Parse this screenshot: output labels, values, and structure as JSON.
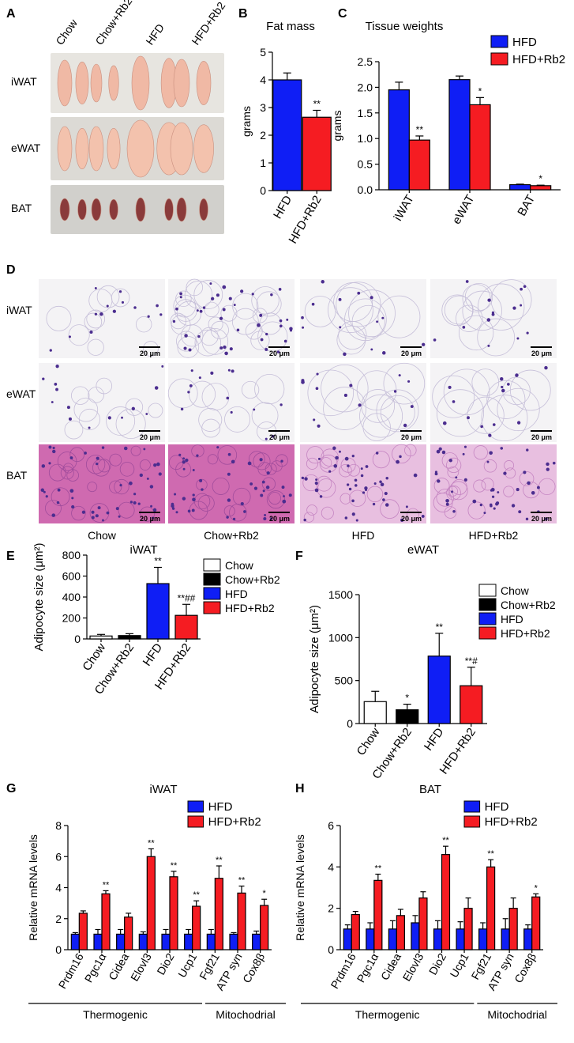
{
  "panel_labels": {
    "A": "A",
    "B": "B",
    "C": "C",
    "D": "D",
    "E": "E",
    "F": "F",
    "G": "G",
    "H": "H"
  },
  "colors": {
    "HFD": "#0f1ef5",
    "HFD+Rb2": "#f51c22",
    "Chow": "#ffffff",
    "Chow+Rb2": "#000000",
    "photo_bg": "#d9d9d4",
    "he_white": "#f4f3f5",
    "he_bat": "#d47fbd",
    "nucleus": "#4b2d8f"
  },
  "panelA": {
    "groups": [
      "Chow",
      "Chow+Rb2",
      "HFD",
      "HFD+Rb2"
    ],
    "rows": [
      "iWAT",
      "eWAT",
      "BAT"
    ]
  },
  "panelD": {
    "rows": [
      "iWAT",
      "eWAT",
      "BAT"
    ],
    "columns": [
      "Chow",
      "Chow+Rb2",
      "HFD",
      "HFD+Rb2"
    ],
    "scale_bar": "20 μm"
  },
  "chart_data": [
    {
      "panel": "B",
      "type": "bar",
      "title": "Fat mass",
      "ylabel": "grams",
      "categories": [
        "HFD",
        "HFD+Rb2"
      ],
      "values": [
        4.0,
        2.65
      ],
      "errors": [
        0.25,
        0.25
      ],
      "colors": [
        "#0f1ef5",
        "#f51c22"
      ],
      "annotations": [
        "",
        "**"
      ],
      "ylim": [
        0,
        5
      ],
      "yticks": [
        "0",
        "1",
        "2",
        "3",
        "4",
        "5"
      ]
    },
    {
      "panel": "C",
      "type": "bar",
      "title": "Tissue weights",
      "ylabel": "grams",
      "categories": [
        "iWAT",
        "eWAT",
        "BAT"
      ],
      "series": [
        {
          "name": "HFD",
          "values": [
            1.95,
            2.15,
            0.1
          ],
          "errors": [
            0.15,
            0.07,
            0.01
          ],
          "annotations": [
            "",
            "",
            ""
          ]
        },
        {
          "name": "HFD+Rb2",
          "values": [
            0.97,
            1.66,
            0.08
          ],
          "errors": [
            0.08,
            0.14,
            0.01
          ],
          "annotations": [
            "**",
            "*",
            "*"
          ]
        }
      ],
      "ylim": [
        0,
        2.5
      ],
      "yticks": [
        "0.0",
        "0.5",
        "1.0",
        "1.5",
        "2.0",
        "2.5"
      ],
      "legend": "top-right"
    },
    {
      "panel": "E",
      "type": "bar",
      "title": "iWAT",
      "ylabel": "Adipocyte size (μm²)",
      "categories": [
        "Chow",
        "Chow+Rb2",
        "HFD",
        "HFD+Rb2"
      ],
      "values": [
        28,
        32,
        528,
        225
      ],
      "errors": [
        15,
        18,
        155,
        105
      ],
      "colors": [
        "#ffffff",
        "#000000",
        "#0f1ef5",
        "#f51c22"
      ],
      "annotations": [
        "",
        "",
        "**",
        "**##"
      ],
      "ylim": [
        0,
        800
      ],
      "yticks": [
        "0",
        "200",
        "400",
        "600",
        "800"
      ],
      "legend_entries": [
        "Chow",
        "Chow+Rb2",
        "HFD",
        "HFD+Rb2"
      ],
      "legend": "top-right"
    },
    {
      "panel": "F",
      "type": "bar",
      "title": "eWAT",
      "ylabel": "Adipocyte size (μm²)",
      "categories": [
        "Chow",
        "Chow+Rb2",
        "HFD",
        "HFD+Rb2"
      ],
      "values": [
        255,
        160,
        785,
        440
      ],
      "errors": [
        120,
        65,
        265,
        215
      ],
      "colors": [
        "#ffffff",
        "#000000",
        "#0f1ef5",
        "#f51c22"
      ],
      "annotations": [
        "",
        "*",
        "**",
        "**#"
      ],
      "ylim": [
        0,
        1500
      ],
      "yticks": [
        "0",
        "500",
        "1000",
        "1500"
      ],
      "legend_entries": [
        "Chow",
        "Chow+Rb2",
        "HFD",
        "HFD+Rb2"
      ],
      "legend": "top-right"
    },
    {
      "panel": "G",
      "type": "bar",
      "title": "iWAT",
      "ylabel": "Relative mRNA levels",
      "categories": [
        "Prdm16",
        "Pgc1α",
        "Cidea",
        "Elovl3",
        "Dio2",
        "Ucp1",
        "Fgf21",
        "ATP syn",
        "Cox8β"
      ],
      "series": [
        {
          "name": "HFD",
          "values": [
            1,
            1,
            1,
            1,
            1,
            1,
            1,
            1,
            1
          ],
          "errors": [
            0.1,
            0.3,
            0.3,
            0.15,
            0.3,
            0.3,
            0.3,
            0.1,
            0.2
          ],
          "annotations": [
            "",
            "",
            "",
            "",
            "",
            "",
            "",
            "",
            ""
          ]
        },
        {
          "name": "HFD+Rb2",
          "values": [
            2.35,
            3.6,
            2.1,
            6.0,
            4.7,
            2.8,
            4.6,
            3.65,
            2.85
          ],
          "errors": [
            0.15,
            0.2,
            0.25,
            0.5,
            0.35,
            0.35,
            0.8,
            0.45,
            0.4
          ],
          "annotations": [
            "",
            "**",
            "",
            "**",
            "**",
            "**",
            "**",
            "**",
            "*"
          ]
        }
      ],
      "ylim": [
        0,
        8
      ],
      "yticks": [
        "0",
        "2",
        "4",
        "6",
        "8"
      ],
      "groups": [
        {
          "label": "Thermogenic",
          "from": 0,
          "to": 5
        },
        {
          "label": "Mitochodrial",
          "from": 6,
          "to": 8
        }
      ],
      "legend": "top-right"
    },
    {
      "panel": "H",
      "type": "bar",
      "title": "BAT",
      "ylabel": "Relative mRNA levels",
      "categories": [
        "Prdm16",
        "Pgc1α",
        "Cidea",
        "Elovl3",
        "Dio2",
        "Ucp1",
        "Fgf21",
        "ATP syn",
        "Cox8β"
      ],
      "series": [
        {
          "name": "HFD",
          "values": [
            1,
            1,
            1,
            1.3,
            1,
            1,
            1,
            1,
            1
          ],
          "errors": [
            0.2,
            0.3,
            0.4,
            0.35,
            0.4,
            0.35,
            0.3,
            0.5,
            0.2
          ],
          "annotations": [
            "",
            "",
            "",
            "",
            "",
            "",
            "",
            "",
            ""
          ]
        },
        {
          "name": "HFD+Rb2",
          "values": [
            1.7,
            3.35,
            1.65,
            2.5,
            4.6,
            2.0,
            4.0,
            2.0,
            2.55
          ],
          "errors": [
            0.15,
            0.3,
            0.3,
            0.3,
            0.4,
            0.5,
            0.35,
            0.5,
            0.15
          ],
          "annotations": [
            "",
            "**",
            "",
            "",
            "**",
            "",
            "**",
            "",
            "*"
          ]
        }
      ],
      "ylim": [
        0,
        6
      ],
      "yticks": [
        "0",
        "2",
        "4",
        "6"
      ],
      "groups": [
        {
          "label": "Thermogenic",
          "from": 0,
          "to": 5
        },
        {
          "label": "Mitochodrial",
          "from": 6,
          "to": 8
        }
      ],
      "legend": "top-right"
    }
  ]
}
